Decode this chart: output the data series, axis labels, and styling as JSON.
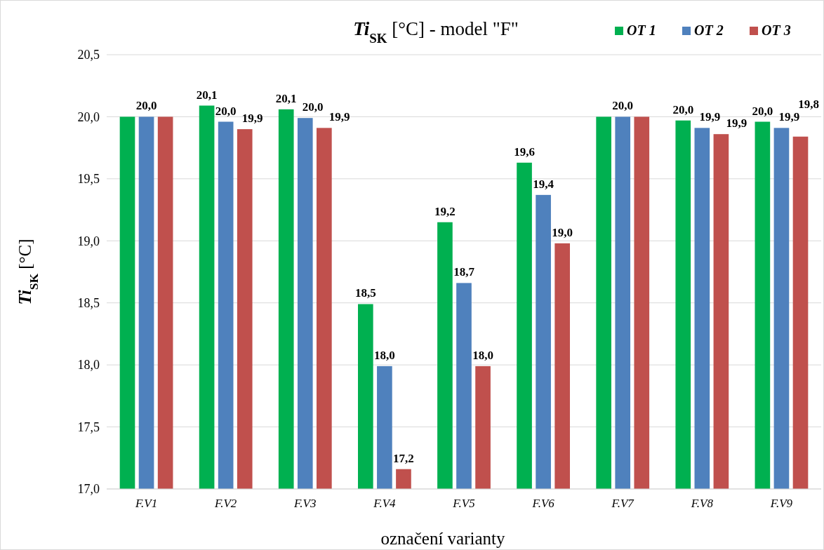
{
  "chart_data": {
    "type": "bar",
    "title": "Ti$_{SK}$ [°C] - model \"F\"",
    "xlabel": "označení varianty",
    "ylabel": "Ti$_{SK}$ [°C]",
    "categories": [
      "F.V1",
      "F.V2",
      "F.V3",
      "F.V4",
      "F.V5",
      "F.V6",
      "F.V7",
      "F.V8",
      "F.V9"
    ],
    "series": [
      {
        "name": "OT 1",
        "color": "#00b050",
        "values": [
          20.0,
          20.09,
          20.06,
          18.49,
          19.15,
          19.63,
          20.0,
          19.97,
          19.96
        ],
        "value_labels": [
          null,
          "20,1",
          "20,1",
          "18,5",
          "19,2",
          "19,6",
          null,
          "20,0",
          "20,0"
        ]
      },
      {
        "name": "OT 2",
        "color": "#4f81bd",
        "values": [
          20.0,
          19.96,
          19.99,
          17.99,
          18.66,
          19.37,
          20.0,
          19.91,
          19.91
        ],
        "value_labels": [
          "20,0",
          "20,0",
          "20,0",
          "18,0",
          "18,7",
          "19,4",
          "20,0",
          "19,9",
          "19,9"
        ]
      },
      {
        "name": "OT 3",
        "color": "#c0504d",
        "values": [
          20.0,
          19.9,
          19.91,
          17.16,
          17.99,
          18.98,
          20.0,
          19.86,
          19.84
        ],
        "value_labels": [
          null,
          "19,9",
          "19,9",
          "17,2",
          "18,0",
          "19,0",
          null,
          "19,9",
          "19,8"
        ]
      }
    ],
    "ylim": [
      17.0,
      20.5
    ],
    "yticks": [
      {
        "value": 17.0,
        "label": "17,0"
      },
      {
        "value": 17.5,
        "label": "17,5"
      },
      {
        "value": 18.0,
        "label": "18,0"
      },
      {
        "value": 18.5,
        "label": "18,5"
      },
      {
        "value": 19.0,
        "label": "19,0"
      },
      {
        "value": 19.5,
        "label": "19,5"
      },
      {
        "value": 20.0,
        "label": "20,0"
      },
      {
        "value": 20.5,
        "label": "20,5"
      }
    ],
    "grid": "y",
    "legend": "top right"
  }
}
